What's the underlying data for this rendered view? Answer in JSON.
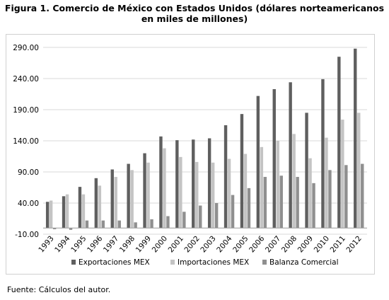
{
  "title": {
    "line1": "Figura 1. Comercio de México con Estados Unidos (dólares norteamericanos",
    "line2": "en miles de millones)"
  },
  "source": "Fuente: Cálculos del autor.",
  "colors": {
    "exportaciones": "#5f5f5f",
    "importaciones": "#c4c4c4",
    "balanza": "#8f8f8f",
    "grid": "#d9d9d9"
  },
  "chart_data": {
    "type": "bar",
    "categories": [
      "1993",
      "1994",
      "1995",
      "1996",
      "1997",
      "1998",
      "1999",
      "2000",
      "2001",
      "2002",
      "2003",
      "2004",
      "2005",
      "2006",
      "2007",
      "2008",
      "2009",
      "2010",
      "2011",
      "2012"
    ],
    "series": [
      {
        "name": "Exportaciones MEX",
        "values": [
          42,
          51,
          66,
          80,
          94,
          103,
          120,
          147,
          141,
          142,
          144,
          165,
          183,
          212,
          223,
          234,
          185,
          239,
          275,
          288
        ]
      },
      {
        "name": "Importaciones MEX",
        "values": [
          44,
          54,
          54,
          68,
          82,
          93,
          105,
          128,
          114,
          106,
          105,
          111,
          119,
          130,
          140,
          151,
          112,
          145,
          174,
          185
        ]
      },
      {
        "name": "Balanza Comercial",
        "values": [
          -2,
          -3,
          12,
          12,
          12,
          9,
          14,
          19,
          26,
          36,
          40,
          53,
          64,
          82,
          84,
          82,
          72,
          93,
          101,
          103
        ]
      }
    ],
    "yticks": [
      "290.00",
      "240.00",
      "190.00",
      "140.00",
      "90.00",
      "40.00",
      "-10.00"
    ],
    "ylim": [
      -10,
      290
    ],
    "grid": true,
    "legend": "bottom"
  }
}
